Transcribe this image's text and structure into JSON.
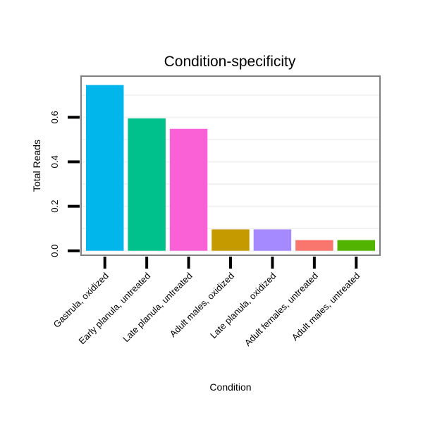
{
  "chart_data": {
    "type": "bar",
    "title": "Condition-specificity",
    "xlabel": "Condition",
    "ylabel": "Total Reads",
    "categories": [
      "Gastrula, oxidized",
      "Early planula, untreated",
      "Late planula, untreated",
      "Adult males, oxidized",
      "Late planula, oxidized",
      "Adult females, untreated",
      "Adult males, untreated"
    ],
    "values": [
      0.745,
      0.595,
      0.548,
      0.096,
      0.096,
      0.048,
      0.048
    ],
    "colors": [
      "#00b6eb",
      "#00c08b",
      "#fb61d7",
      "#c49a00",
      "#a58aff",
      "#f8766d",
      "#53b400"
    ],
    "yticks": [
      0.0,
      0.2,
      0.4,
      0.6
    ],
    "ytick_labels": [
      "0.0",
      "0.2",
      "0.4",
      "0.6"
    ],
    "ylim": [
      -0.02,
      0.785
    ],
    "grid": true,
    "legend": "none"
  }
}
